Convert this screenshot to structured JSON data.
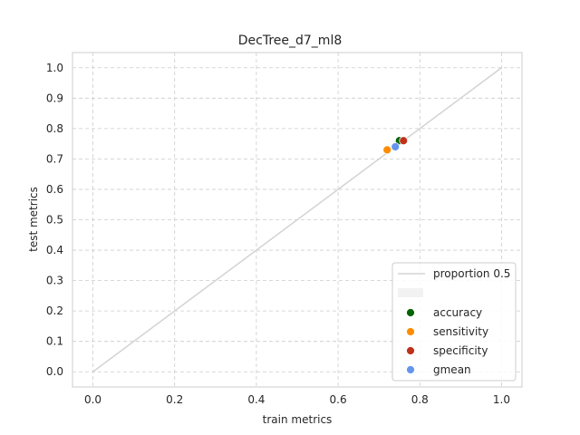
{
  "chart_data": {
    "type": "scatter",
    "title": "DecTree_d7_ml8",
    "xlabel": "train metrics",
    "ylabel": "test metrics",
    "xlim": [
      -0.05,
      1.05
    ],
    "ylim": [
      -0.05,
      1.05
    ],
    "x_ticks": [
      "0.0",
      "0.2",
      "0.4",
      "0.6",
      "0.8",
      "1.0"
    ],
    "y_ticks": [
      "0.0",
      "0.1",
      "0.2",
      "0.3",
      "0.4",
      "0.5",
      "0.6",
      "0.7",
      "0.8",
      "0.9",
      "1.0"
    ],
    "grid": true,
    "legend_position": "lower-right",
    "reference_line": {
      "name": "proportion 0.5",
      "x": [
        0.0,
        1.0
      ],
      "y": [
        0.0,
        1.0
      ],
      "color": "#d3d3d3"
    },
    "series": [
      {
        "name": "accuracy",
        "color": "#006400",
        "x": [
          0.75
        ],
        "y": [
          0.76
        ]
      },
      {
        "name": "sensitivity",
        "color": "#ff8c00",
        "x": [
          0.72
        ],
        "y": [
          0.73
        ]
      },
      {
        "name": "specificity",
        "color": "#c0311a",
        "x": [
          0.76
        ],
        "y": [
          0.76
        ]
      },
      {
        "name": "gmean",
        "color": "#6495ed",
        "x": [
          0.74
        ],
        "y": [
          0.74
        ]
      }
    ]
  }
}
